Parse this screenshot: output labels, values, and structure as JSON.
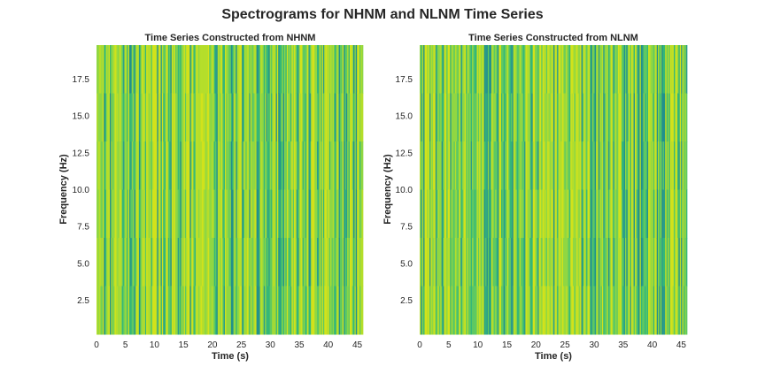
{
  "figure_title": "Spectrograms for NHNM and NLNM Time Series",
  "chart_data": [
    {
      "type": "heatmap",
      "title": "Time Series Constructed from NHNM",
      "xlabel": "Time (s)",
      "ylabel": "Frequency (Hz)",
      "xlim": [
        0,
        46
      ],
      "ylim": [
        0.2,
        19.8
      ],
      "xticks": [
        "0",
        "5",
        "10",
        "15",
        "20",
        "25",
        "30",
        "35",
        "40",
        "45"
      ],
      "yticks": [
        "2.5",
        "5.0",
        "7.5",
        "10.0",
        "12.5",
        "15.0",
        "17.5"
      ],
      "colormap": "viridis",
      "value_range_shown": "mostly green to yellow with sparse teal streaks",
      "grid": false
    },
    {
      "type": "heatmap",
      "title": "Time Series Constructed from NLNM",
      "xlabel": "Time (s)",
      "ylabel": "Frequency (Hz)",
      "xlim": [
        0,
        46
      ],
      "ylim": [
        0.2,
        19.8
      ],
      "xticks": [
        "0",
        "5",
        "10",
        "15",
        "20",
        "25",
        "30",
        "35",
        "40",
        "45"
      ],
      "yticks": [
        "2.5",
        "5.0",
        "7.5",
        "10.0",
        "12.5",
        "15.0",
        "17.5"
      ],
      "colormap": "viridis",
      "value_range_shown": "mostly green to yellow with sparse teal streaks",
      "grid": false
    }
  ],
  "colors": {
    "text": "#262626",
    "background": "#ffffff",
    "viridis_stops": [
      "#21918c",
      "#2a9d8a",
      "#35b779",
      "#5ec962",
      "#90d743",
      "#b5de2b",
      "#d2e21b"
    ]
  }
}
